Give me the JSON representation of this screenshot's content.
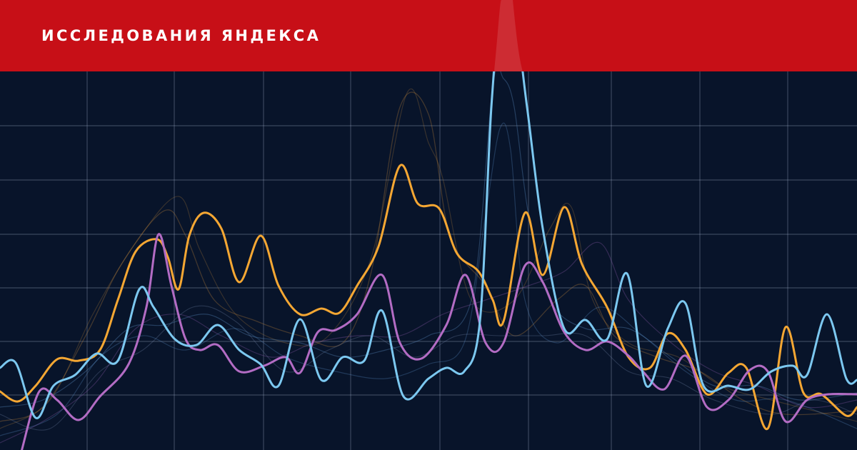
{
  "header": {
    "title": "ИССЛЕДОВАНИЯ ЯНДЕКСА"
  }
}
